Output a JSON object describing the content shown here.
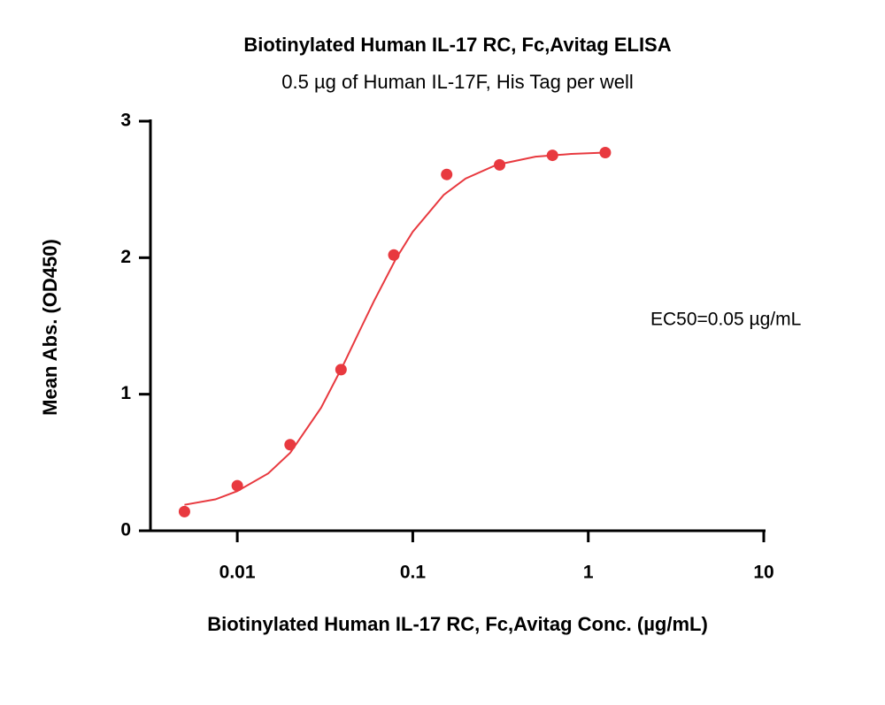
{
  "chart_data": {
    "type": "scatter",
    "title": "Biotinylated Human IL-17 RC, Fc,Avitag ELISA",
    "subtitle": "0.5 µg of Human IL-17F, His Tag per well",
    "xlabel": "Biotinylated Human IL-17 RC, Fc,Avitag Conc. (µg/mL)",
    "ylabel": "Mean Abs. (OD450)",
    "annotation": "EC50=0.05 µg/mL",
    "xscale": "log",
    "xlim": [
      0.0032,
      10
    ],
    "xticks": [
      0.01,
      0.1,
      1,
      10
    ],
    "ylim": [
      0,
      3
    ],
    "yticks": [
      0,
      1,
      2,
      3
    ],
    "series": [
      {
        "type": "scatter",
        "color": "#e8393f",
        "x": [
          0.005,
          0.01,
          0.02,
          0.039,
          0.078,
          0.156,
          0.3125,
          0.625,
          1.25
        ],
        "values": [
          0.14,
          0.33,
          0.63,
          1.18,
          2.02,
          2.61,
          2.68,
          2.75,
          2.77
        ]
      },
      {
        "type": "line",
        "color": "#e8393f",
        "x": [
          0.005,
          0.0075,
          0.01,
          0.015,
          0.02,
          0.03,
          0.04,
          0.05,
          0.06,
          0.08,
          0.1,
          0.15,
          0.2,
          0.3,
          0.5,
          0.8,
          1.25
        ],
        "values": [
          0.19,
          0.23,
          0.29,
          0.42,
          0.57,
          0.9,
          1.21,
          1.47,
          1.68,
          1.99,
          2.19,
          2.46,
          2.58,
          2.68,
          2.74,
          2.76,
          2.77
        ]
      }
    ]
  }
}
